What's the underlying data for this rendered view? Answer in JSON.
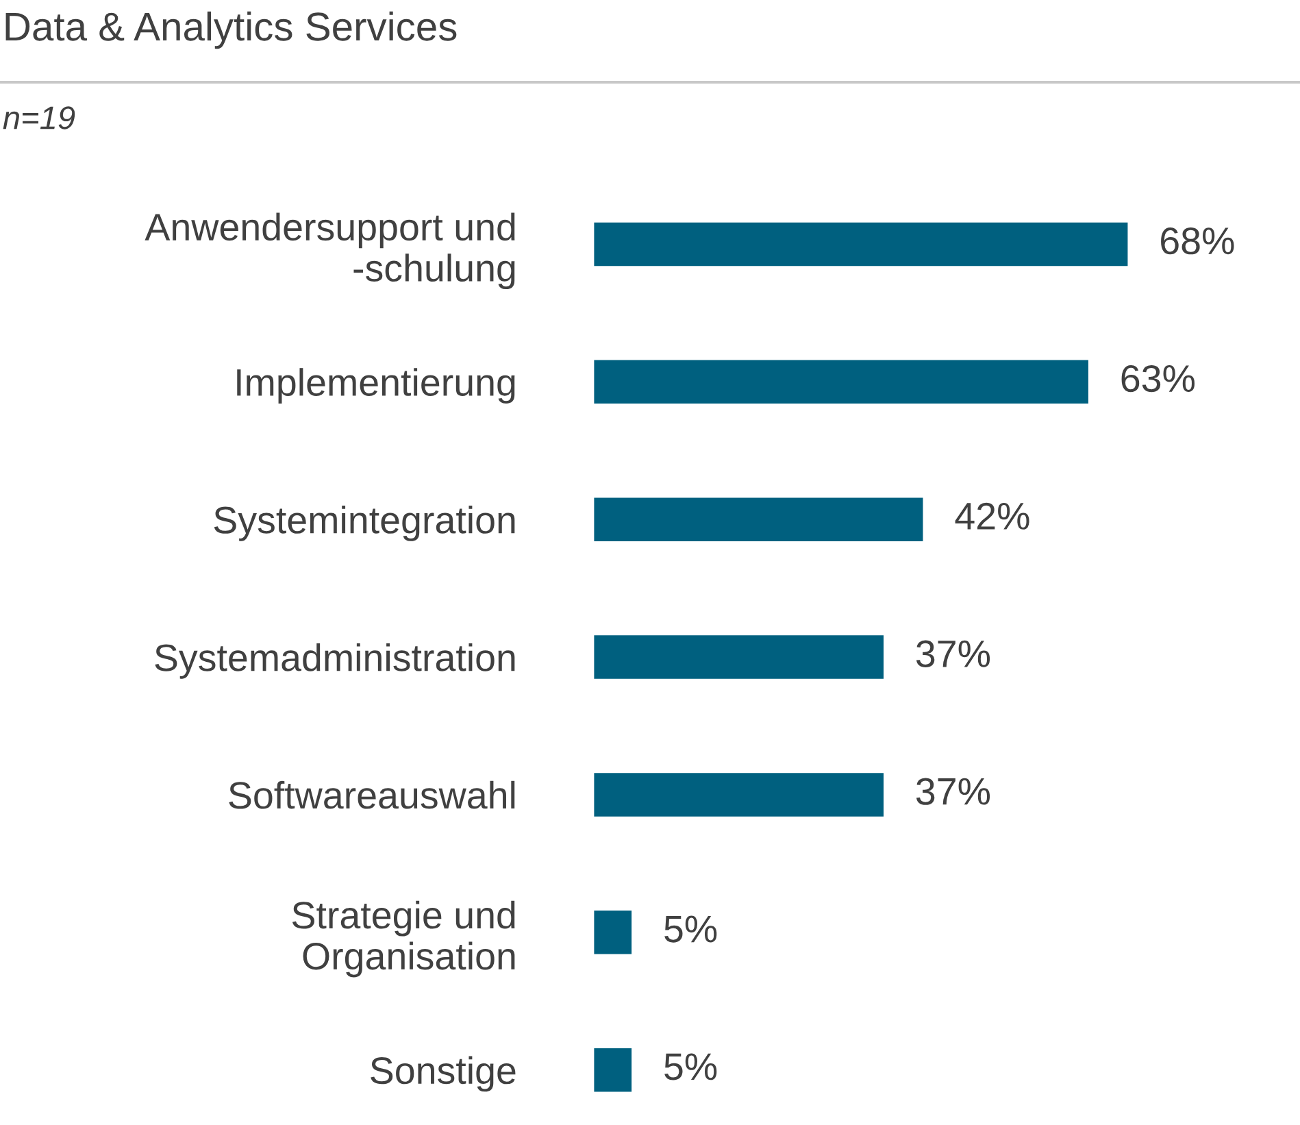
{
  "chart_data": {
    "type": "bar",
    "orientation": "horizontal",
    "title": "Data & Analytics Services",
    "subtitle": "n=19",
    "categories": [
      "Anwendersupport und\n-schulung",
      "Implementierung",
      "Systemintegration",
      "Systemadministration",
      "Softwareauswahl",
      "Strategie und\nOrganisation",
      "Sonstige"
    ],
    "values": [
      68,
      63,
      42,
      37,
      37,
      5,
      5
    ],
    "value_labels": [
      "68%",
      "63%",
      "42%",
      "37%",
      "37%",
      "5%",
      "5%"
    ],
    "color": "#00607f",
    "grid": false,
    "legend": false
  }
}
